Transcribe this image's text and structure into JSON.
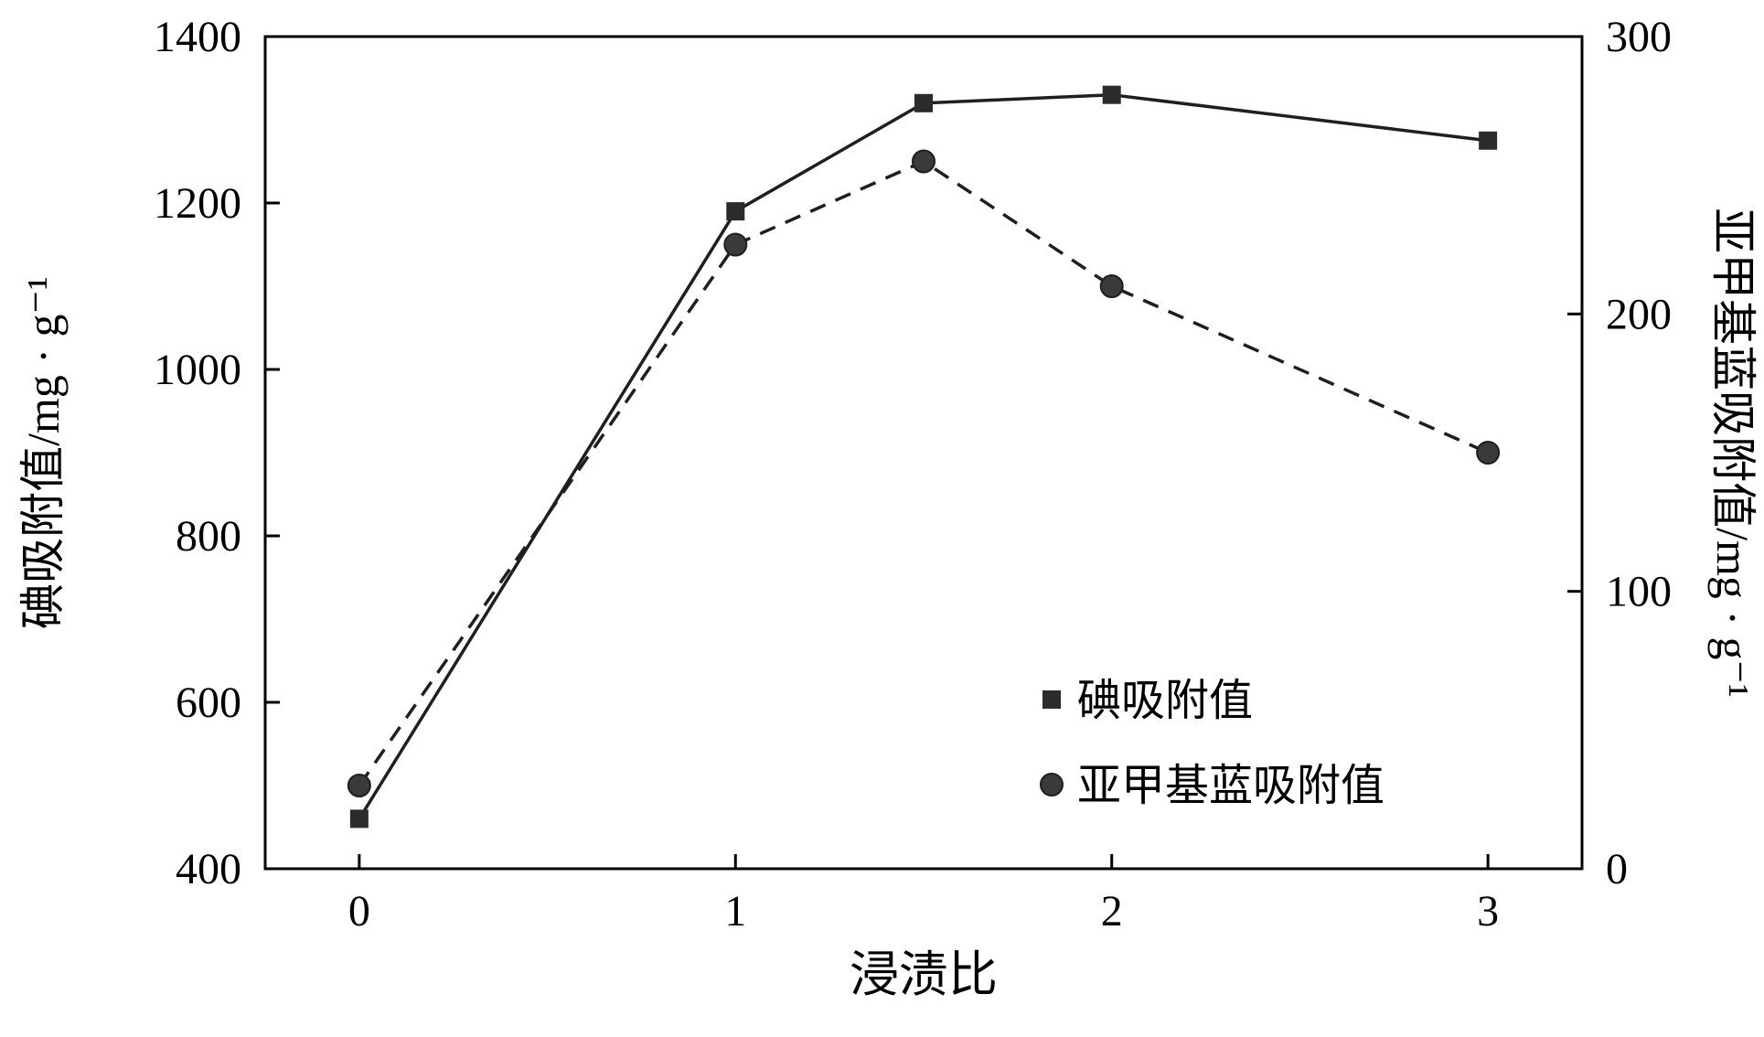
{
  "chart_data": {
    "type": "line",
    "title": "",
    "xlabel": "浸渍比",
    "ylabel_left": "碘吸附值/mg · g⁻¹",
    "ylabel_right": "亚甲基蓝吸附值/mg · g⁻¹",
    "xlim": [
      -0.25,
      3.25
    ],
    "x_ticks": [
      0,
      1,
      2,
      3
    ],
    "ylim_left": [
      400,
      1400
    ],
    "yticks_left": [
      400,
      600,
      800,
      1000,
      1200,
      1400
    ],
    "ylim_right": [
      0,
      300
    ],
    "yticks_right": [
      0,
      100,
      200,
      300
    ],
    "grid": false,
    "legend_position": "inside-lower-right",
    "series": [
      {
        "name": "碘吸附值",
        "axis": "left",
        "marker": "square",
        "line": "solid",
        "x": [
          0,
          1,
          1.5,
          2,
          3
        ],
        "values": [
          460,
          1190,
          1320,
          1330,
          1275
        ]
      },
      {
        "name": "亚甲基蓝吸附值",
        "axis": "right",
        "marker": "circle",
        "line": "dashed",
        "x": [
          0,
          1,
          1.5,
          2,
          3
        ],
        "values": [
          30,
          225,
          255,
          210,
          150
        ]
      }
    ],
    "colors": {
      "frame": "#000000",
      "line": "#1f1f1f",
      "square_marker": "#2b2b2b",
      "circle_marker": "#3a3a3a",
      "text": "#000000",
      "background": "#ffffff"
    }
  },
  "legend": {
    "items": [
      {
        "label": "碘吸附值",
        "marker": "square"
      },
      {
        "label": "亚甲基蓝吸附值",
        "marker": "circle"
      }
    ]
  }
}
